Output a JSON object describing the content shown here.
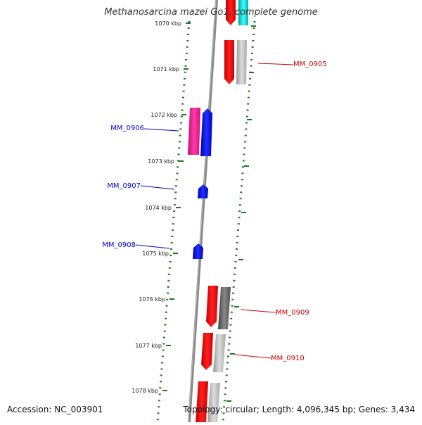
{
  "title": "Methanosarcina mazei Go1, complete genome",
  "footer": {
    "accession": "Accession: NC_003901",
    "summary": "Topology: circular; Length: 4,096,345 bp; Genes: 3,434"
  },
  "ticks": [
    {
      "label": "1070 kbp"
    },
    {
      "label": "1071 kbp"
    },
    {
      "label": "1072 kbp"
    },
    {
      "label": "1073 kbp"
    },
    {
      "label": "1074 kbp"
    },
    {
      "label": "1075 kbp"
    },
    {
      "label": "1076 kbp"
    },
    {
      "label": "1077 kbp"
    },
    {
      "label": "1078 kbp"
    }
  ],
  "gene_labels": [
    {
      "name": "MM_0905",
      "color": "#cc0000"
    },
    {
      "name": "MM_0906",
      "color": "#0000cc"
    },
    {
      "name": "MM_0907",
      "color": "#0000cc"
    },
    {
      "name": "MM_0908",
      "color": "#0000cc"
    },
    {
      "name": "MM_0909",
      "color": "#cc0000"
    },
    {
      "name": "MM_0910",
      "color": "#cc0000"
    }
  ],
  "colors": {
    "gene_red": "#ff0000",
    "gene_blue": "#0000ff",
    "gene_magenta": "#e8178a",
    "gene_cyan": "#00cccc",
    "gene_gray": "#b8b8b8",
    "gene_darkgray": "#666666",
    "backbone": "#888888",
    "tick_green": "#1a7a1a"
  }
}
